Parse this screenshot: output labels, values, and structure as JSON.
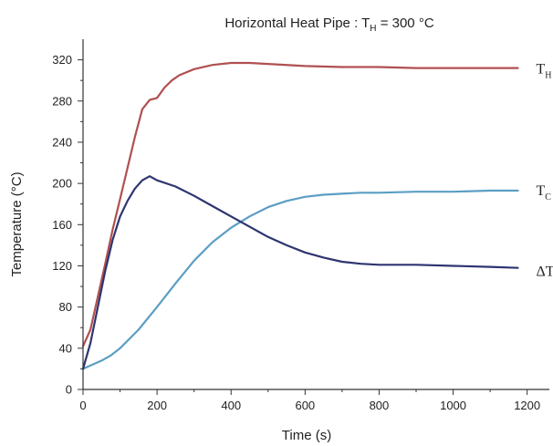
{
  "chart_data": {
    "type": "line",
    "title": {
      "prefix": "Horizontal Heat Pipe : T",
      "subscript": "H",
      "suffix": " = 300 °C"
    },
    "xlabel": "Time (s)",
    "ylabel": "Temperature (°C)",
    "xlim": [
      0,
      1260
    ],
    "ylim": [
      0,
      340
    ],
    "xticks": [
      0,
      200,
      400,
      600,
      800,
      1000,
      1200
    ],
    "yticks": [
      0,
      40,
      80,
      120,
      160,
      200,
      240,
      280,
      320
    ],
    "grid": false,
    "legend": "inline-right",
    "series": [
      {
        "name": "T_H",
        "label_main": "T",
        "label_sub": "H",
        "color": "#b05050",
        "x": [
          0,
          20,
          40,
          60,
          80,
          100,
          120,
          140,
          160,
          180,
          200,
          220,
          240,
          260,
          300,
          350,
          400,
          450,
          500,
          600,
          700,
          800,
          900,
          1000,
          1100,
          1175
        ],
        "y": [
          42,
          58,
          90,
          122,
          155,
          185,
          215,
          245,
          272,
          281,
          283,
          293,
          300,
          305,
          311,
          315,
          317,
          317,
          316,
          314,
          313,
          313,
          312,
          312,
          312,
          312
        ]
      },
      {
        "name": "T_C",
        "label_main": "T",
        "label_sub": "C",
        "color": "#5b9ec4",
        "x": [
          0,
          25,
          50,
          75,
          100,
          150,
          200,
          250,
          300,
          350,
          400,
          450,
          500,
          550,
          600,
          650,
          700,
          750,
          800,
          900,
          1000,
          1100,
          1175
        ],
        "y": [
          20,
          24,
          28,
          33,
          40,
          58,
          80,
          103,
          125,
          143,
          157,
          168,
          177,
          183,
          187,
          189,
          190,
          191,
          191,
          192,
          192,
          193,
          193
        ]
      },
      {
        "name": "ΔT",
        "label_main": "ΔT",
        "label_sub": "",
        "color": "#2e3470",
        "x": [
          0,
          20,
          40,
          60,
          80,
          100,
          120,
          140,
          160,
          180,
          200,
          250,
          300,
          350,
          400,
          450,
          500,
          550,
          600,
          650,
          700,
          750,
          800,
          900,
          1000,
          1100,
          1175
        ],
        "y": [
          20,
          45,
          80,
          115,
          145,
          168,
          183,
          195,
          203,
          207,
          203,
          197,
          188,
          178,
          168,
          158,
          148,
          140,
          133,
          128,
          124,
          122,
          121,
          121,
          120,
          119,
          118
        ]
      }
    ]
  }
}
